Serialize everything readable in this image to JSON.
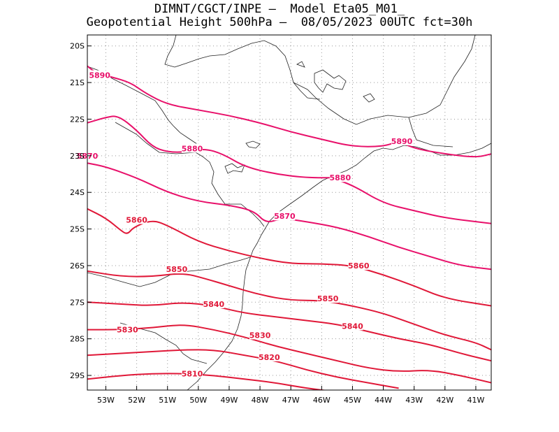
{
  "header": {
    "line1": "DIMNT/CGCT/INPE –  Model Eta05_M01_",
    "line2": "Geopotential Height 500hPa –  08/05/2023 00UTC fct=30h"
  },
  "map": {
    "lon_range": [
      -53.6,
      -40.5
    ],
    "lat_range": [
      -29.4,
      -19.7
    ],
    "lat_ticks": [
      "20S",
      "21S",
      "22S",
      "23S",
      "24S",
      "25S",
      "26S",
      "27S",
      "28S",
      "29S"
    ],
    "lon_ticks": [
      "53W",
      "52W",
      "51W",
      "50W",
      "49W",
      "48W",
      "47W",
      "46W",
      "45W",
      "44W",
      "43W",
      "42W",
      "41W"
    ],
    "contour_colors": {
      "5890": "#e8106a",
      "5880": "#e8106a",
      "5870": "#e8106a",
      "5860": "#e01838",
      "5850": "#e01838",
      "5840": "#e01838",
      "5830": "#e01838",
      "5820": "#e01838",
      "5810": "#e01838"
    },
    "contours": [
      {
        "value": "5890",
        "pts": [
          [
            -53.6,
            -20.55
          ],
          [
            -53.3,
            -20.75
          ],
          [
            -52.8,
            -20.85
          ],
          [
            -52.2,
            -21.0
          ],
          [
            -51.7,
            -21.3
          ],
          [
            -51.0,
            -21.6
          ],
          [
            -50.0,
            -21.75
          ],
          [
            -49.0,
            -21.9
          ],
          [
            -48.0,
            -22.1
          ],
          [
            -47.0,
            -22.35
          ],
          [
            -46.0,
            -22.55
          ],
          [
            -45.0,
            -22.75
          ],
          [
            -44.0,
            -22.75
          ],
          [
            -43.5,
            -22.6
          ],
          [
            -43.0,
            -22.8
          ],
          [
            -42.0,
            -22.95
          ],
          [
            -41.0,
            -23.05
          ],
          [
            -40.5,
            -22.95
          ]
        ],
        "labels": [
          [
            -53.2,
            -20.8
          ],
          [
            -43.4,
            -22.6
          ]
        ]
      },
      {
        "value": "5890",
        "pts": [
          [
            -53.6,
            -22.1
          ],
          [
            -53.0,
            -21.95
          ],
          [
            -52.6,
            -21.9
          ],
          [
            -52.0,
            -22.3
          ],
          [
            -51.5,
            -22.75
          ],
          [
            -51.0,
            -22.9
          ],
          [
            -50.4,
            -22.9
          ],
          [
            -49.8,
            -22.8
          ],
          [
            -49.2,
            -22.95
          ],
          [
            -48.5,
            -23.3
          ],
          [
            -47.5,
            -23.5
          ],
          [
            -46.5,
            -23.6
          ],
          [
            -45.7,
            -23.6
          ]
        ],
        "labels": []
      },
      {
        "value": "5880",
        "pts": [
          [
            -45.7,
            -23.6
          ],
          [
            -45.0,
            -23.8
          ],
          [
            -44.0,
            -24.3
          ],
          [
            -43.0,
            -24.5
          ],
          [
            -42.0,
            -24.7
          ],
          [
            -40.5,
            -24.85
          ]
        ],
        "labels": [
          [
            -50.2,
            -22.8
          ],
          [
            -45.4,
            -23.6
          ]
        ]
      },
      {
        "value": "5870",
        "pts": [
          [
            -53.6,
            -23.2
          ],
          [
            -53.0,
            -23.3
          ],
          [
            -52.0,
            -23.6
          ],
          [
            -51.0,
            -24.0
          ],
          [
            -50.0,
            -24.25
          ],
          [
            -49.0,
            -24.35
          ],
          [
            -48.2,
            -24.5
          ],
          [
            -47.8,
            -24.85
          ],
          [
            -47.3,
            -24.7
          ],
          [
            -46.5,
            -24.8
          ],
          [
            -45.5,
            -24.95
          ],
          [
            -44.5,
            -25.2
          ],
          [
            -43.5,
            -25.5
          ],
          [
            -42.5,
            -25.75
          ],
          [
            -41.5,
            -26.0
          ],
          [
            -40.5,
            -26.1
          ]
        ],
        "labels": [
          [
            -53.6,
            -23.0
          ],
          [
            -47.2,
            -24.65
          ]
        ]
      },
      {
        "value": "5860",
        "pts": [
          [
            -53.6,
            -24.45
          ],
          [
            -53.0,
            -24.7
          ],
          [
            -52.5,
            -25.05
          ],
          [
            -52.3,
            -25.15
          ],
          [
            -52.1,
            -24.95
          ],
          [
            -51.5,
            -24.75
          ],
          [
            -51.0,
            -24.9
          ],
          [
            -50.0,
            -25.35
          ],
          [
            -49.0,
            -25.6
          ],
          [
            -48.0,
            -25.8
          ],
          [
            -47.0,
            -25.95
          ],
          [
            -46.0,
            -25.95
          ],
          [
            -45.0,
            -26.0
          ],
          [
            -44.0,
            -26.25
          ],
          [
            -43.0,
            -26.55
          ],
          [
            -42.0,
            -26.9
          ],
          [
            -40.5,
            -27.1
          ]
        ],
        "labels": [
          [
            -52.0,
            -24.75
          ],
          [
            -44.8,
            -26.0
          ]
        ]
      },
      {
        "value": "5850",
        "pts": [
          [
            -53.6,
            -26.15
          ],
          [
            -52.5,
            -26.3
          ],
          [
            -51.5,
            -26.3
          ],
          [
            -50.5,
            -26.2
          ],
          [
            -49.8,
            -26.35
          ],
          [
            -49.0,
            -26.55
          ],
          [
            -48.0,
            -26.8
          ],
          [
            -47.0,
            -26.95
          ],
          [
            -46.0,
            -26.95
          ],
          [
            -45.0,
            -27.1
          ],
          [
            -44.0,
            -27.3
          ],
          [
            -43.0,
            -27.6
          ],
          [
            -42.0,
            -27.9
          ],
          [
            -41.0,
            -28.1
          ],
          [
            -40.5,
            -28.3
          ]
        ],
        "labels": [
          [
            -50.7,
            -26.1
          ],
          [
            -45.8,
            -26.9
          ]
        ]
      },
      {
        "value": "5840",
        "pts": [
          [
            -53.6,
            -27.0
          ],
          [
            -52.5,
            -27.05
          ],
          [
            -51.5,
            -27.1
          ],
          [
            -50.5,
            -27.0
          ],
          [
            -49.5,
            -27.1
          ],
          [
            -48.5,
            -27.3
          ],
          [
            -47.5,
            -27.4
          ],
          [
            -46.5,
            -27.5
          ],
          [
            -45.5,
            -27.6
          ],
          [
            -44.5,
            -27.8
          ],
          [
            -43.5,
            -28.0
          ],
          [
            -42.5,
            -28.15
          ],
          [
            -41.5,
            -28.4
          ],
          [
            -40.5,
            -28.6
          ]
        ],
        "labels": [
          [
            -49.5,
            -27.05
          ],
          [
            -45.0,
            -27.65
          ]
        ]
      },
      {
        "value": "5830",
        "pts": [
          [
            -53.6,
            -27.75
          ],
          [
            -52.5,
            -27.75
          ],
          [
            -51.5,
            -27.7
          ],
          [
            -50.5,
            -27.6
          ],
          [
            -49.5,
            -27.75
          ],
          [
            -48.5,
            -27.95
          ],
          [
            -47.5,
            -28.2
          ],
          [
            -46.5,
            -28.4
          ],
          [
            -45.5,
            -28.6
          ],
          [
            -44.5,
            -28.8
          ],
          [
            -43.5,
            -28.9
          ],
          [
            -42.5,
            -28.85
          ],
          [
            -41.5,
            -29.0
          ],
          [
            -40.5,
            -29.2
          ]
        ],
        "labels": [
          [
            -52.3,
            -27.75
          ],
          [
            -48.0,
            -27.9
          ]
        ]
      },
      {
        "value": "5820",
        "pts": [
          [
            -53.6,
            -28.45
          ],
          [
            -52.5,
            -28.4
          ],
          [
            -51.5,
            -28.35
          ],
          [
            -50.5,
            -28.3
          ],
          [
            -49.5,
            -28.3
          ],
          [
            -48.5,
            -28.45
          ],
          [
            -47.5,
            -28.6
          ],
          [
            -46.5,
            -28.85
          ],
          [
            -45.5,
            -29.05
          ],
          [
            -44.5,
            -29.2
          ],
          [
            -43.5,
            -29.35
          ]
        ],
        "labels": [
          [
            -47.7,
            -28.5
          ]
        ]
      },
      {
        "value": "5810",
        "pts": [
          [
            -53.6,
            -29.1
          ],
          [
            -52.5,
            -29.0
          ],
          [
            -51.5,
            -28.95
          ],
          [
            -50.5,
            -28.95
          ],
          [
            -49.5,
            -29.0
          ],
          [
            -48.5,
            -29.1
          ],
          [
            -47.5,
            -29.2
          ],
          [
            -46.5,
            -29.35
          ],
          [
            -45.5,
            -29.45
          ]
        ],
        "labels": [
          [
            -50.2,
            -28.95
          ]
        ]
      }
    ]
  }
}
